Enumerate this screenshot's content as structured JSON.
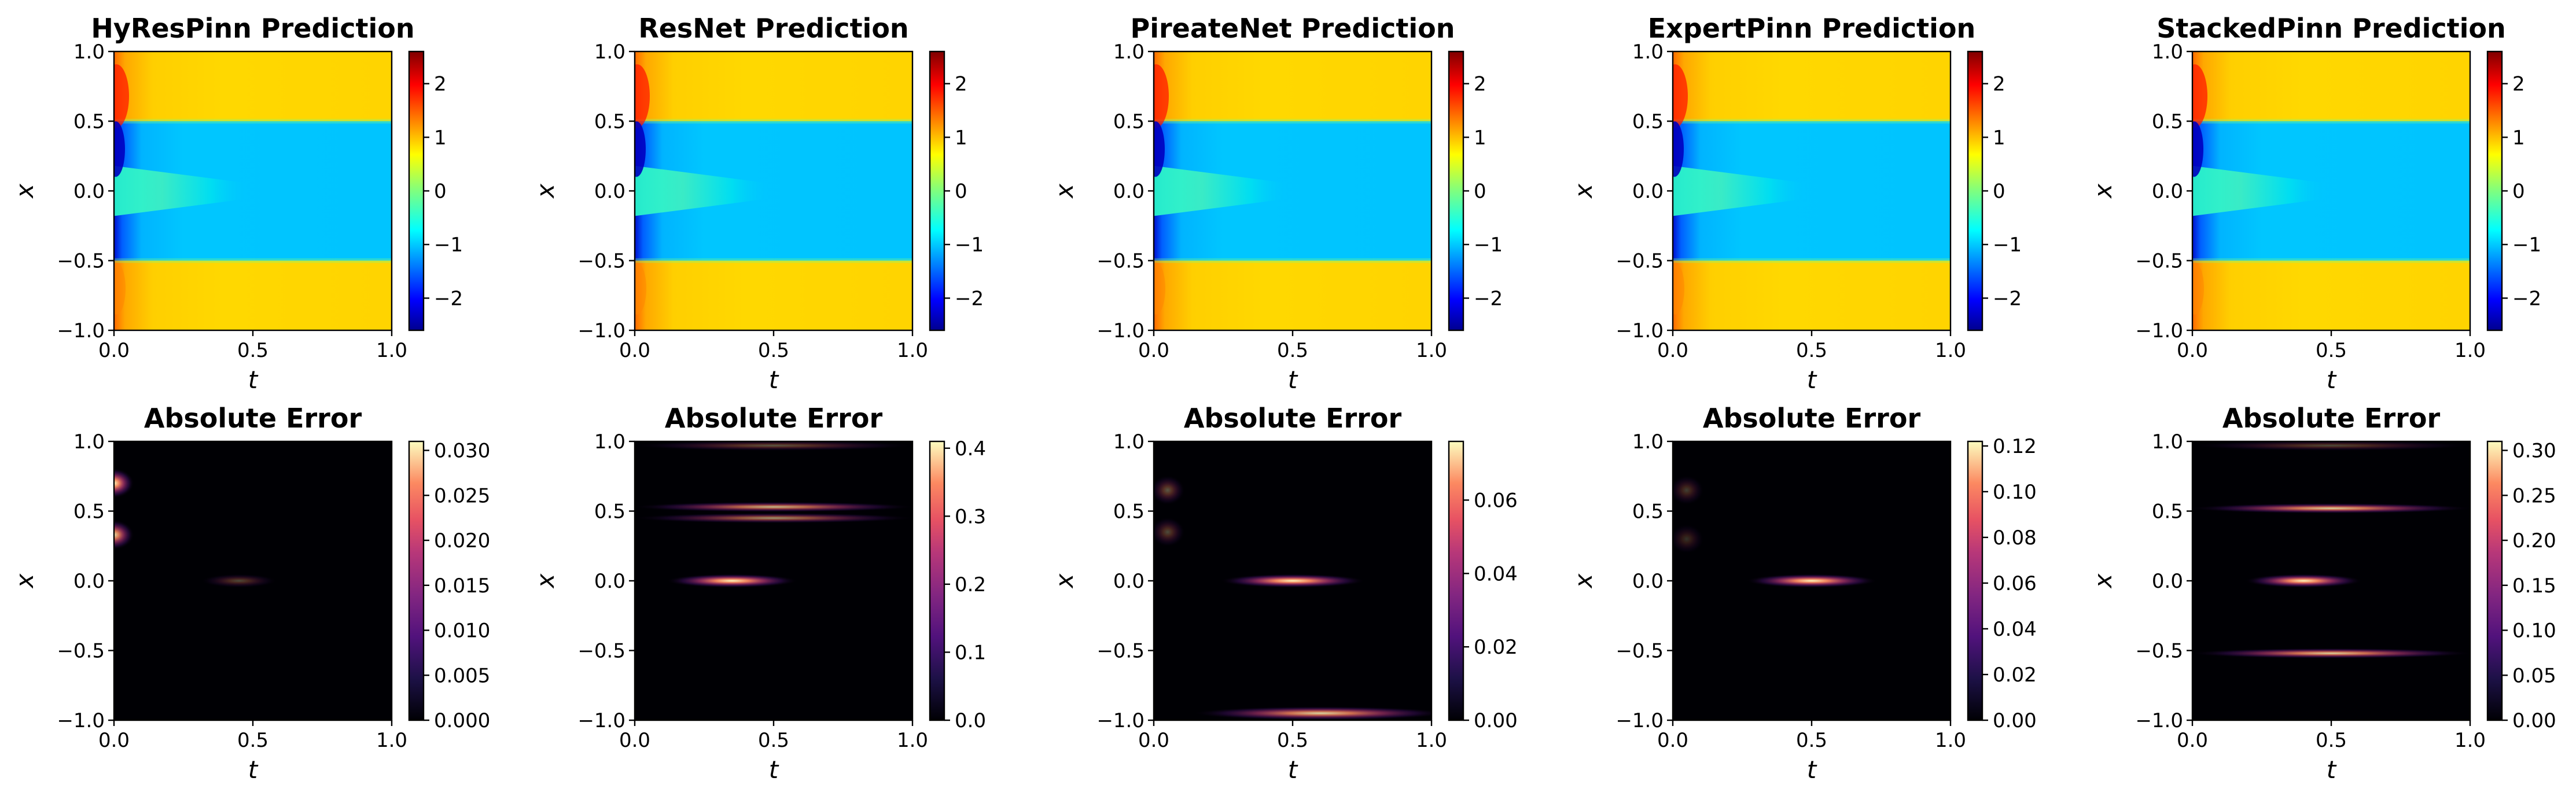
{
  "chart_data": [
    {
      "type": "heatmap",
      "title": "HyResPinn Prediction",
      "xlabel": "t",
      "ylabel": "x",
      "xlim": [
        0,
        1
      ],
      "ylim": [
        -1,
        1
      ],
      "xticks": [
        "0.0",
        "0.5",
        "1.0"
      ],
      "yticks": [
        "1.0",
        "0.5",
        "0.0",
        "−0.5",
        "−1.0"
      ],
      "colormap": "jet",
      "colorbar_range": [
        -2.6,
        2.6
      ],
      "colorbar_ticks": [
        "2",
        "1",
        "0",
        "−1",
        "−2"
      ]
    },
    {
      "type": "heatmap",
      "title": "ResNet Prediction",
      "xlabel": "t",
      "ylabel": "x",
      "xlim": [
        0,
        1
      ],
      "ylim": [
        -1,
        1
      ],
      "xticks": [
        "0.0",
        "0.5",
        "1.0"
      ],
      "yticks": [
        "1.0",
        "0.5",
        "0.0",
        "−0.5",
        "−1.0"
      ],
      "colormap": "jet",
      "colorbar_range": [
        -2.6,
        2.6
      ],
      "colorbar_ticks": [
        "2",
        "1",
        "0",
        "−1",
        "−2"
      ]
    },
    {
      "type": "heatmap",
      "title": "PireateNet Prediction",
      "xlabel": "t",
      "ylabel": "x",
      "xlim": [
        0,
        1
      ],
      "ylim": [
        -1,
        1
      ],
      "xticks": [
        "0.0",
        "0.5",
        "1.0"
      ],
      "yticks": [
        "1.0",
        "0.5",
        "0.0",
        "−0.5",
        "−1.0"
      ],
      "colormap": "jet",
      "colorbar_range": [
        -2.6,
        2.6
      ],
      "colorbar_ticks": [
        "2",
        "1",
        "0",
        "−1",
        "−2"
      ]
    },
    {
      "type": "heatmap",
      "title": "ExpertPinn Prediction",
      "xlabel": "t",
      "ylabel": "x",
      "xlim": [
        0,
        1
      ],
      "ylim": [
        -1,
        1
      ],
      "xticks": [
        "0.0",
        "0.5",
        "1.0"
      ],
      "yticks": [
        "1.0",
        "0.5",
        "0.0",
        "−0.5",
        "−1.0"
      ],
      "colormap": "jet",
      "colorbar_range": [
        -2.6,
        2.6
      ],
      "colorbar_ticks": [
        "2",
        "1",
        "0",
        "−1",
        "−2"
      ]
    },
    {
      "type": "heatmap",
      "title": "StackedPinn Prediction",
      "xlabel": "t",
      "ylabel": "x",
      "xlim": [
        0,
        1
      ],
      "ylim": [
        -1,
        1
      ],
      "xticks": [
        "0.0",
        "0.5",
        "1.0"
      ],
      "yticks": [
        "1.0",
        "0.5",
        "0.0",
        "−0.5",
        "−1.0"
      ],
      "colormap": "jet",
      "colorbar_range": [
        -2.6,
        2.6
      ],
      "colorbar_ticks": [
        "2",
        "1",
        "0",
        "−1",
        "−2"
      ]
    },
    {
      "type": "heatmap",
      "title": "Absolute Error",
      "xlabel": "t",
      "ylabel": "x",
      "xlim": [
        0,
        1
      ],
      "ylim": [
        -1,
        1
      ],
      "xticks": [
        "0.0",
        "0.5",
        "1.0"
      ],
      "yticks": [
        "1.0",
        "0.5",
        "0.0",
        "−0.5",
        "−1.0"
      ],
      "colormap": "magma",
      "colorbar_range": [
        0,
        0.031
      ],
      "colorbar_ticks": [
        "0.030",
        "0.025",
        "0.020",
        "0.015",
        "0.010",
        "0.005",
        "0.000"
      ],
      "colorbar_tick_values": [
        0.03,
        0.025,
        0.02,
        0.015,
        0.01,
        0.005,
        0.0
      ],
      "features": [
        {
          "x_center": 0.0,
          "x_value": 0.7,
          "width": 0.12,
          "intensity": 1.0
        },
        {
          "x_center": 0.0,
          "x_value": 0.33,
          "width": 0.12,
          "intensity": 0.9
        },
        {
          "x_center": 0.45,
          "x_value": 0.0,
          "width": 0.25,
          "intensity": 0.3
        }
      ]
    },
    {
      "type": "heatmap",
      "title": "Absolute Error",
      "xlabel": "t",
      "ylabel": "x",
      "xlim": [
        0,
        1
      ],
      "ylim": [
        -1,
        1
      ],
      "xticks": [
        "0.0",
        "0.5",
        "1.0"
      ],
      "yticks": [
        "1.0",
        "0.5",
        "0.0",
        "−0.5",
        "−1.0"
      ],
      "colormap": "magma",
      "colorbar_range": [
        0,
        0.41
      ],
      "colorbar_ticks": [
        "0.4",
        "0.3",
        "0.2",
        "0.1",
        "0.0"
      ],
      "colorbar_tick_values": [
        0.4,
        0.3,
        0.2,
        0.1,
        0.0
      ],
      "features": [
        {
          "x_center": 0.5,
          "x_value": 0.53,
          "width": 1.0,
          "intensity": 0.75
        },
        {
          "x_center": 0.5,
          "x_value": 0.45,
          "width": 1.0,
          "intensity": 0.6
        },
        {
          "x_center": 0.35,
          "x_value": 0.0,
          "width": 0.45,
          "intensity": 1.0
        },
        {
          "x_center": 0.5,
          "x_value": 0.97,
          "width": 1.0,
          "intensity": 0.35
        }
      ]
    },
    {
      "type": "heatmap",
      "title": "Absolute Error",
      "xlabel": "t",
      "ylabel": "x",
      "xlim": [
        0,
        1
      ],
      "ylim": [
        -1,
        1
      ],
      "xticks": [
        "0.0",
        "0.5",
        "1.0"
      ],
      "yticks": [
        "1.0",
        "0.5",
        "0.0",
        "−0.5",
        "−1.0"
      ],
      "colormap": "magma",
      "colorbar_range": [
        0,
        0.076
      ],
      "colorbar_ticks": [
        "0.06",
        "0.04",
        "0.02",
        "0.00"
      ],
      "colorbar_tick_values": [
        0.06,
        0.04,
        0.02,
        0.0
      ],
      "features": [
        {
          "x_center": 0.5,
          "x_value": 0.0,
          "width": 0.5,
          "intensity": 1.0
        },
        {
          "x_center": 0.6,
          "x_value": -0.95,
          "width": 0.9,
          "intensity": 0.85
        },
        {
          "x_center": 0.05,
          "x_value": 0.65,
          "width": 0.1,
          "intensity": 0.35
        },
        {
          "x_center": 0.05,
          "x_value": 0.35,
          "width": 0.1,
          "intensity": 0.3
        }
      ]
    },
    {
      "type": "heatmap",
      "title": "Absolute Error",
      "xlabel": "t",
      "ylabel": "x",
      "xlim": [
        0,
        1
      ],
      "ylim": [
        -1,
        1
      ],
      "xticks": [
        "0.0",
        "0.5",
        "1.0"
      ],
      "yticks": [
        "1.0",
        "0.5",
        "0.0",
        "−0.5",
        "−1.0"
      ],
      "colormap": "magma",
      "colorbar_range": [
        0,
        0.122
      ],
      "colorbar_ticks": [
        "0.12",
        "0.10",
        "0.08",
        "0.06",
        "0.04",
        "0.02",
        "0.00"
      ],
      "colorbar_tick_values": [
        0.12,
        0.1,
        0.08,
        0.06,
        0.04,
        0.02,
        0.0
      ],
      "features": [
        {
          "x_center": 0.5,
          "x_value": 0.0,
          "width": 0.45,
          "intensity": 1.0
        },
        {
          "x_center": 0.05,
          "x_value": 0.65,
          "width": 0.1,
          "intensity": 0.25
        },
        {
          "x_center": 0.05,
          "x_value": 0.3,
          "width": 0.1,
          "intensity": 0.2
        }
      ]
    },
    {
      "type": "heatmap",
      "title": "Absolute Error",
      "xlabel": "t",
      "ylabel": "x",
      "xlim": [
        0,
        1
      ],
      "ylim": [
        -1,
        1
      ],
      "xticks": [
        "0.0",
        "0.5",
        "1.0"
      ],
      "yticks": [
        "1.0",
        "0.5",
        "0.0",
        "−0.5",
        "−1.0"
      ],
      "colormap": "magma",
      "colorbar_range": [
        0,
        0.31
      ],
      "colorbar_ticks": [
        "0.30",
        "0.25",
        "0.20",
        "0.15",
        "0.10",
        "0.05",
        "0.00"
      ],
      "colorbar_tick_values": [
        0.3,
        0.25,
        0.2,
        0.15,
        0.1,
        0.05,
        0.0
      ],
      "features": [
        {
          "x_center": 0.5,
          "x_value": 0.52,
          "width": 1.0,
          "intensity": 0.85
        },
        {
          "x_center": 0.5,
          "x_value": -0.52,
          "width": 1.0,
          "intensity": 0.85
        },
        {
          "x_center": 0.4,
          "x_value": 0.0,
          "width": 0.4,
          "intensity": 1.0
        },
        {
          "x_center": 0.5,
          "x_value": 0.97,
          "width": 1.0,
          "intensity": 0.3
        }
      ]
    }
  ]
}
